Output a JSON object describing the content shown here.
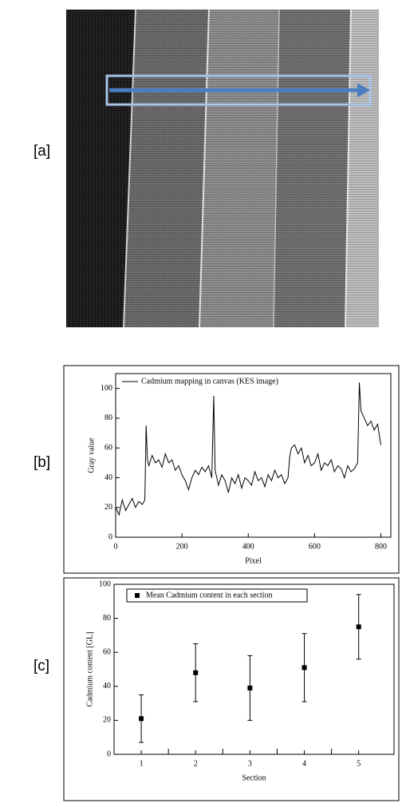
{
  "image_panel": {
    "label": "[a]"
  },
  "chart_data": [
    {
      "type": "line",
      "label": "[b]",
      "xlabel": "Pixel",
      "ylabel": "Gray value",
      "xlim": [
        0,
        830
      ],
      "ylim": [
        0,
        110
      ],
      "xticks": [
        0,
        200,
        400,
        600,
        800
      ],
      "yticks": [
        0,
        20,
        40,
        60,
        80,
        100
      ],
      "legend": "top-left",
      "x": [
        0,
        10,
        20,
        30,
        40,
        50,
        60,
        70,
        80,
        88,
        92,
        96,
        100,
        110,
        120,
        130,
        140,
        150,
        160,
        170,
        180,
        190,
        200,
        210,
        220,
        230,
        240,
        250,
        260,
        270,
        280,
        290,
        296,
        300,
        310,
        320,
        330,
        340,
        350,
        360,
        370,
        380,
        390,
        400,
        410,
        420,
        430,
        440,
        450,
        460,
        470,
        480,
        490,
        500,
        510,
        520,
        525,
        530,
        540,
        550,
        560,
        570,
        580,
        590,
        600,
        610,
        620,
        630,
        640,
        650,
        660,
        670,
        680,
        690,
        700,
        710,
        720,
        730,
        735,
        740,
        750,
        760,
        770,
        780,
        790,
        800
      ],
      "series": [
        {
          "name": "Cadmium mapping in canvas (KES image)",
          "color": "#000000",
          "values": [
            20,
            15,
            25,
            18,
            22,
            26,
            20,
            24,
            22,
            25,
            75,
            52,
            48,
            55,
            50,
            52,
            47,
            56,
            50,
            52,
            45,
            48,
            42,
            38,
            32,
            40,
            45,
            42,
            47,
            44,
            48,
            40,
            95,
            45,
            35,
            42,
            38,
            30,
            40,
            36,
            42,
            33,
            40,
            38,
            35,
            44,
            38,
            40,
            34,
            42,
            38,
            45,
            40,
            42,
            36,
            40,
            54,
            60,
            62,
            56,
            60,
            50,
            55,
            48,
            50,
            56,
            45,
            50,
            48,
            52,
            44,
            48,
            46,
            40,
            48,
            44,
            46,
            50,
            104,
            85,
            80,
            75,
            78,
            72,
            76,
            62
          ]
        }
      ]
    },
    {
      "type": "scatter",
      "label": "[c]",
      "xlabel": "Section",
      "ylabel": "Cadmium content [GL]",
      "xlim": [
        0.5,
        5.65
      ],
      "ylim": [
        0,
        100
      ],
      "xticks": [
        1,
        2,
        3,
        4,
        5
      ],
      "xminorticks": [
        1.5,
        2.5,
        3.5,
        4.5
      ],
      "yticks": [
        0,
        20,
        40,
        60,
        80,
        100
      ],
      "legend": "top-left",
      "x": [
        1,
        2,
        3,
        4,
        5
      ],
      "series": [
        {
          "name": "Mean Cadmium content in each section",
          "color": "#000000",
          "values": [
            21,
            48,
            39,
            51,
            75
          ],
          "errors": [
            14,
            17,
            19,
            20,
            19
          ]
        }
      ]
    }
  ]
}
